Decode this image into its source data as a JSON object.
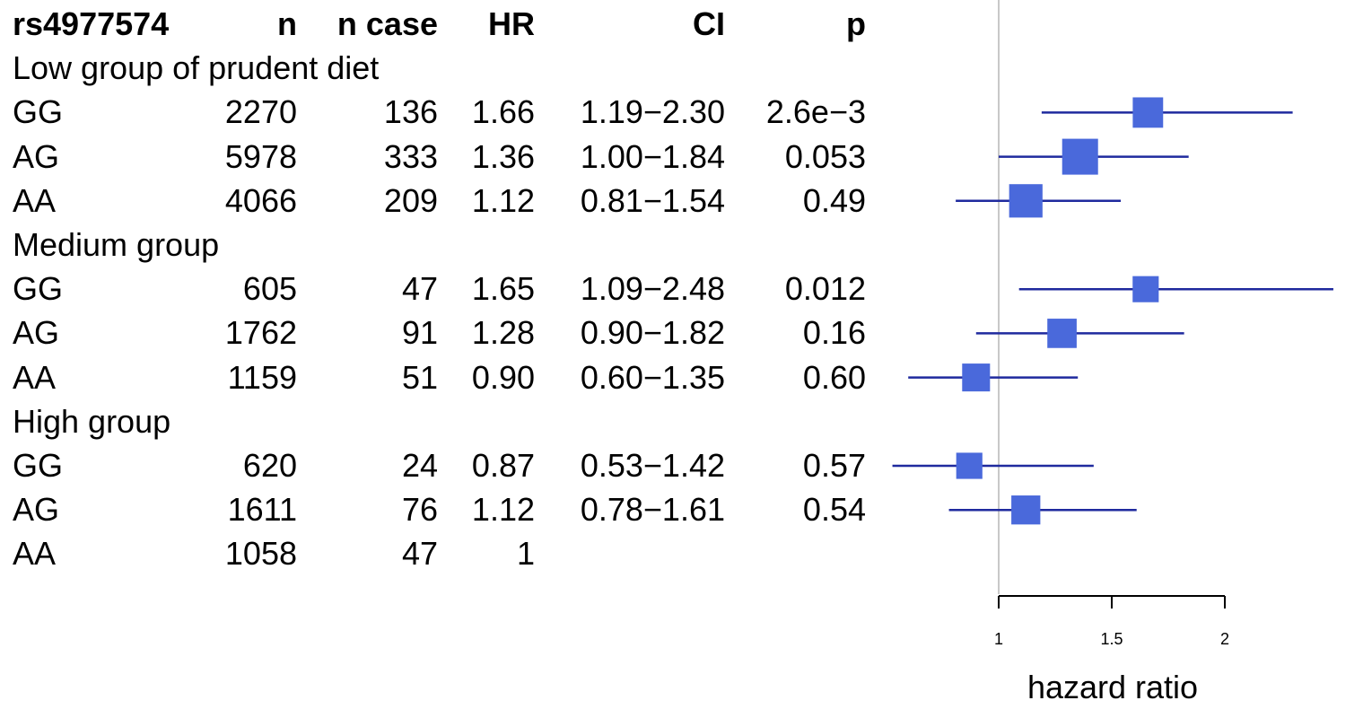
{
  "table": {
    "headers": {
      "snp": "rs4977574",
      "n": "n",
      "n_case": "n case",
      "hr": "HR",
      "ci": "CI",
      "p": "p"
    },
    "groups": [
      {
        "label": "Low group of prudent diet",
        "rows": [
          {
            "genotype": "GG",
            "n": "2270",
            "n_case": "136",
            "hr": "1.66",
            "ci": "1.19−2.30",
            "p": "2.6e−3"
          },
          {
            "genotype": "AG",
            "n": "5978",
            "n_case": "333",
            "hr": "1.36",
            "ci": "1.00−1.84",
            "p": "0.053"
          },
          {
            "genotype": "AA",
            "n": "4066",
            "n_case": "209",
            "hr": "1.12",
            "ci": "0.81−1.54",
            "p": "0.49"
          }
        ]
      },
      {
        "label": "Medium group",
        "rows": [
          {
            "genotype": "GG",
            "n": "605",
            "n_case": "47",
            "hr": "1.65",
            "ci": "1.09−2.48",
            "p": "0.012"
          },
          {
            "genotype": "AG",
            "n": "1762",
            "n_case": "91",
            "hr": "1.28",
            "ci": "0.90−1.82",
            "p": "0.16"
          },
          {
            "genotype": "AA",
            "n": "1159",
            "n_case": "51",
            "hr": "0.90",
            "ci": "0.60−1.35",
            "p": "0.60"
          }
        ]
      },
      {
        "label": "High group",
        "rows": [
          {
            "genotype": "GG",
            "n": "620",
            "n_case": "24",
            "hr": "0.87",
            "ci": "0.53−1.42",
            "p": "0.57"
          },
          {
            "genotype": "AG",
            "n": "1611",
            "n_case": "76",
            "hr": "1.12",
            "ci": "0.78−1.61",
            "p": "0.54"
          },
          {
            "genotype": "AA",
            "n": "1058",
            "n_case": "47",
            "hr": "1",
            "ci": "",
            "p": ""
          }
        ]
      }
    ]
  },
  "chart_data": {
    "type": "forest",
    "xlabel": "hazard ratio",
    "xticks": [
      1,
      1.5,
      2
    ],
    "xtick_labels": [
      "1",
      "1.5",
      "2"
    ],
    "reference_line": 1,
    "colors": {
      "box": "#4A69DB",
      "ci_line": "#1F2A9E",
      "reference": "#c8c8c8",
      "axis": "#000000"
    },
    "points": [
      {
        "group": "Low group of prudent diet",
        "genotype": "GG",
        "hr": 1.66,
        "lower": 1.19,
        "upper": 2.3,
        "n": 2270
      },
      {
        "group": "Low group of prudent diet",
        "genotype": "AG",
        "hr": 1.36,
        "lower": 1.0,
        "upper": 1.84,
        "n": 5978
      },
      {
        "group": "Low group of prudent diet",
        "genotype": "AA",
        "hr": 1.12,
        "lower": 0.81,
        "upper": 1.54,
        "n": 4066
      },
      {
        "group": "Medium group",
        "genotype": "GG",
        "hr": 1.65,
        "lower": 1.09,
        "upper": 2.48,
        "n": 605
      },
      {
        "group": "Medium group",
        "genotype": "AG",
        "hr": 1.28,
        "lower": 0.9,
        "upper": 1.82,
        "n": 1762
      },
      {
        "group": "Medium group",
        "genotype": "AA",
        "hr": 0.9,
        "lower": 0.6,
        "upper": 1.35,
        "n": 1159
      },
      {
        "group": "High group",
        "genotype": "GG",
        "hr": 0.87,
        "lower": 0.53,
        "upper": 1.42,
        "n": 620
      },
      {
        "group": "High group",
        "genotype": "AG",
        "hr": 1.12,
        "lower": 0.78,
        "upper": 1.61,
        "n": 1611
      },
      {
        "group": "High group",
        "genotype": "AA",
        "hr": null,
        "lower": null,
        "upper": null,
        "n": 1058
      }
    ]
  }
}
